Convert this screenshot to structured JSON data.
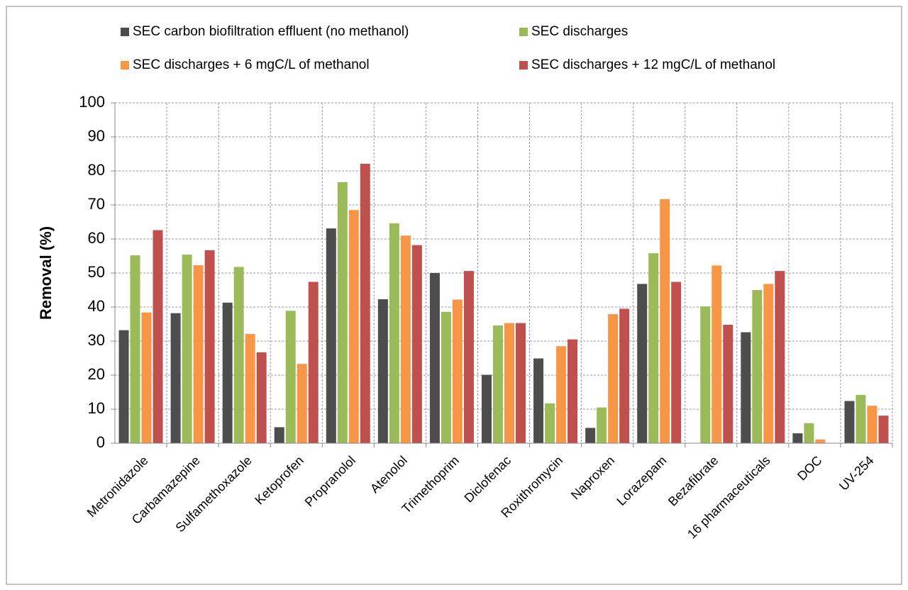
{
  "chart_data": {
    "type": "bar",
    "y_label": "Removal (%)",
    "categories": [
      "Metronidazole",
      "Carbamazepine",
      "Sulfamethoxazole",
      "Ketoprofen",
      "Propranolol",
      "Atenolol",
      "Trimethoprim",
      "Diclofenac",
      "Roxithromycin",
      "Naproxen",
      "Lorazepam",
      "Bezafibrate",
      "16 pharmaceuticals",
      "DOC",
      "UV-254"
    ],
    "series": [
      {
        "name": "SEC carbon biofiltration effluent (no methanol)",
        "color": "#4d4d4d",
        "values": [
          33.2,
          38.2,
          41.3,
          4.7,
          63.1,
          42.3,
          50.0,
          20.1,
          24.9,
          4.5,
          46.8,
          null,
          32.6,
          2.9,
          12.4
        ]
      },
      {
        "name": "SEC discharges",
        "color": "#9bbb59",
        "values": [
          55.2,
          55.4,
          51.8,
          38.9,
          76.7,
          64.6,
          38.6,
          34.6,
          11.7,
          10.5,
          55.8,
          40.2,
          45.0,
          5.9,
          14.2
        ]
      },
      {
        "name": "SEC discharges + 6 mgC/L of methanol",
        "color": "#f79646",
        "values": [
          38.4,
          52.3,
          32.1,
          23.3,
          68.5,
          61.0,
          42.2,
          35.3,
          28.5,
          37.9,
          71.7,
          52.2,
          46.8,
          1.1,
          11.0
        ]
      },
      {
        "name": "SEC discharges + 12 mgC/L of methanol",
        "color": "#c0504d",
        "values": [
          62.6,
          56.7,
          26.7,
          47.4,
          82.1,
          58.2,
          50.6,
          35.3,
          30.5,
          39.5,
          47.4,
          34.8,
          50.6,
          null,
          8.1
        ]
      }
    ],
    "ylim": [
      0,
      100
    ],
    "yticks": [
      0,
      10,
      20,
      30,
      40,
      50,
      60,
      70,
      80,
      90,
      100
    ],
    "grid": true
  }
}
